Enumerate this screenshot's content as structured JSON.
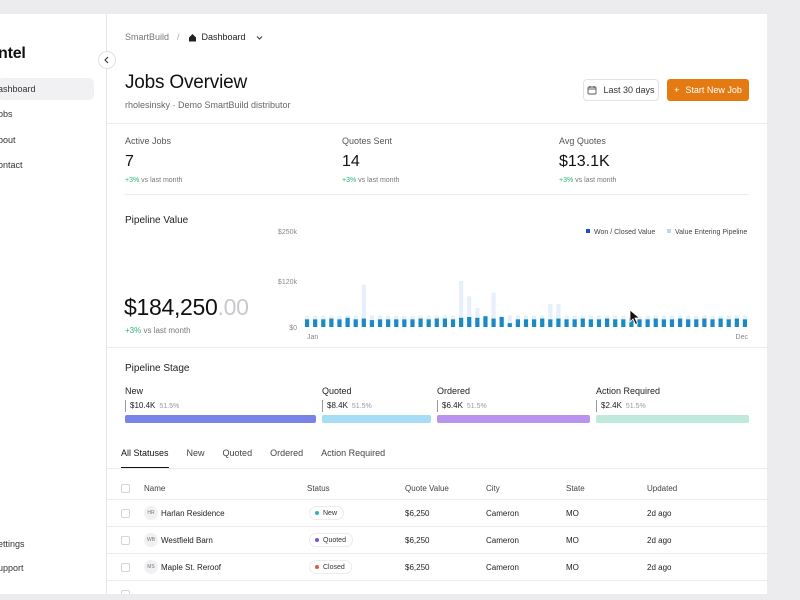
{
  "sidebar": {
    "brand": "ntel",
    "items": [
      {
        "label": "ashboard",
        "active": true
      },
      {
        "label": "obs"
      },
      {
        "label": "bout"
      },
      {
        "label": "ontact"
      }
    ],
    "bottom": [
      {
        "label": "ettings"
      },
      {
        "label": "upport"
      }
    ]
  },
  "breadcrumb": {
    "root": "SmartBuild",
    "separator": "/",
    "current": "Dashboard"
  },
  "header": {
    "title": "Jobs Overview",
    "subtitle": "rholesinsky · Demo SmartBuild distributor",
    "range_label": "Last 30 days",
    "start_label": "Start New Job"
  },
  "stats": [
    {
      "label": "Active Jobs",
      "value": "7",
      "delta": "+3%",
      "delta_suffix": "vs last month"
    },
    {
      "label": "Quotes Sent",
      "value": "14",
      "delta": "+3%",
      "delta_suffix": "vs last month"
    },
    {
      "label": "Avg Quotes",
      "value": "$13.1K",
      "delta": "+3%",
      "delta_suffix": "vs last month"
    }
  ],
  "pipeline": {
    "title": "Pipeline Value",
    "value_main": "$184,250",
    "value_dec": ".00",
    "delta": "+3%",
    "delta_suffix": "vs last month"
  },
  "chart_data": {
    "type": "bar",
    "legend": [
      {
        "name": "Won / Closed Value",
        "color": "#1b4fd6"
      },
      {
        "name": "Value Entering Pipeline",
        "color": "#bcd6f7"
      }
    ],
    "y_ticks": [
      "$250k",
      "$120k",
      "$0"
    ],
    "ylim": [
      0,
      250
    ],
    "x_labels": [
      "Jan",
      "Dec"
    ],
    "won_color": "#1b8ac4",
    "pipe_color": "#e7effd",
    "series": [
      {
        "name": "Won / Closed Value",
        "values": [
          20,
          20,
          20,
          22,
          20,
          24,
          20,
          22,
          18,
          20,
          20,
          20,
          20,
          20,
          22,
          20,
          22,
          22,
          20,
          24,
          26,
          24,
          28,
          22,
          26,
          10,
          20,
          20,
          20,
          22,
          20,
          22,
          20,
          20,
          22,
          20,
          20,
          22,
          20,
          20,
          24,
          20,
          20,
          22,
          20,
          20,
          22,
          20,
          20,
          22,
          20,
          22,
          20,
          22,
          20
        ]
      },
      {
        "name": "Value Entering Pipeline",
        "values": [
          30,
          30,
          30,
          30,
          30,
          30,
          30,
          110,
          30,
          30,
          30,
          30,
          30,
          30,
          30,
          30,
          30,
          30,
          30,
          120,
          80,
          50,
          30,
          90,
          30,
          30,
          30,
          30,
          30,
          30,
          60,
          60,
          30,
          30,
          30,
          30,
          30,
          30,
          30,
          30,
          30,
          30,
          30,
          30,
          30,
          30,
          30,
          30,
          30,
          30,
          30,
          30,
          30,
          30,
          30
        ]
      }
    ]
  },
  "stage": {
    "title": "Pipeline Stage",
    "items": [
      {
        "name": "New",
        "amount": "$10.4K",
        "pct": "51.5%",
        "color": "#7a83e6"
      },
      {
        "name": "Quoted",
        "amount": "$8.4K",
        "pct": "51.5%",
        "color": "#a6dcf4"
      },
      {
        "name": "Ordered",
        "amount": "$6.4K",
        "pct": "51.5%",
        "color": "#b894ef"
      },
      {
        "name": "Action Required",
        "amount": "$2.4K",
        "pct": "51.5%",
        "color": "#bfe9dd"
      }
    ]
  },
  "tabs": [
    {
      "label": "All Statuses",
      "active": true
    },
    {
      "label": "New"
    },
    {
      "label": "Quoted"
    },
    {
      "label": "Ordered"
    },
    {
      "label": "Action Required"
    }
  ],
  "table": {
    "columns": [
      "Name",
      "Status",
      "Quote Value",
      "City",
      "State",
      "Updated"
    ],
    "rows": [
      {
        "initials": "HR",
        "name": "Harlan Residence",
        "status": "New",
        "status_color": "#2bb6b0",
        "quote": "$6,250",
        "city": "Cameron",
        "state": "MO",
        "updated": "2d ago"
      },
      {
        "initials": "WB",
        "name": "Westfield Barn",
        "status": "Quoted",
        "status_color": "#7a4fe6",
        "quote": "$6,250",
        "city": "Cameron",
        "state": "MO",
        "updated": "2d ago"
      },
      {
        "initials": "MS",
        "name": "Maple St. Reroof",
        "status": "Closed",
        "status_color": "#e8553d",
        "quote": "$6,250",
        "city": "Cameron",
        "state": "MO",
        "updated": "2d ago"
      }
    ]
  }
}
